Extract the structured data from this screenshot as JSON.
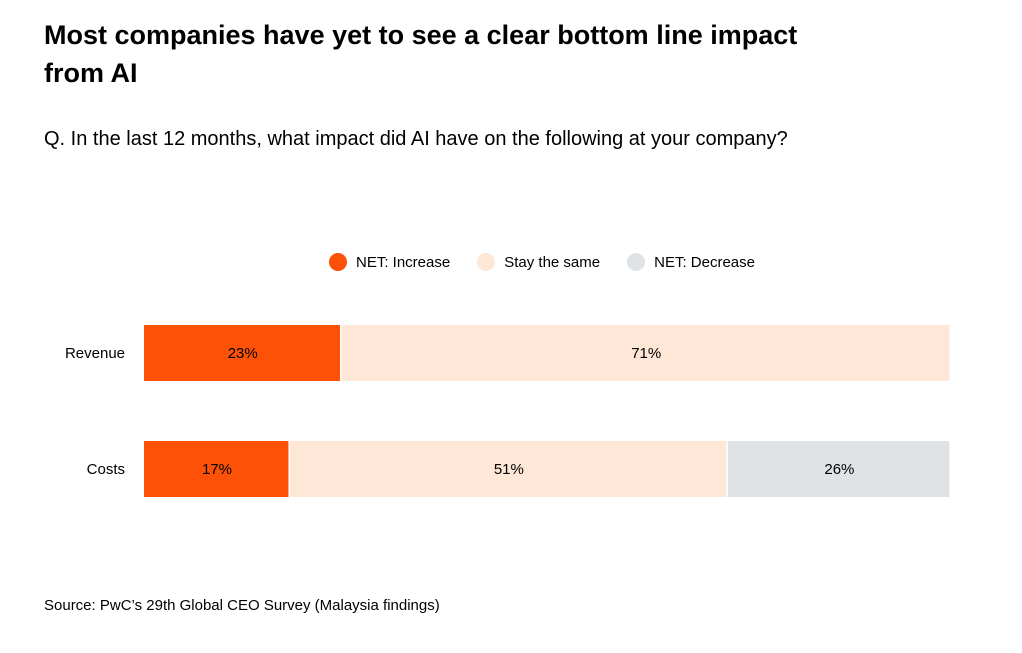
{
  "title": "Most companies have yet to see a clear bottom line impact from AI",
  "subtitle": "Q. In the last 12 months, what impact did AI have on the following at your company?",
  "source": "Source: PwC’s 29th Global CEO Survey (Malaysia findings)",
  "chart_data": {
    "type": "bar",
    "orientation": "horizontal",
    "stacked": true,
    "categories": [
      "Revenue",
      "Costs"
    ],
    "series": [
      {
        "name": "NET: Increase",
        "color": "#FD5108",
        "values": [
          23,
          17
        ],
        "labels": [
          "23%",
          "17%"
        ]
      },
      {
        "name": "Stay the same",
        "color": "#FEE7D6",
        "values": [
          71,
          51
        ],
        "labels": [
          "71%",
          "51%"
        ]
      },
      {
        "name": "NET: Decrease",
        "color": "#DFE3E6",
        "values": [
          null,
          26
        ],
        "labels": [
          "",
          "26%"
        ]
      }
    ],
    "legend": "top-center",
    "grid": false
  }
}
